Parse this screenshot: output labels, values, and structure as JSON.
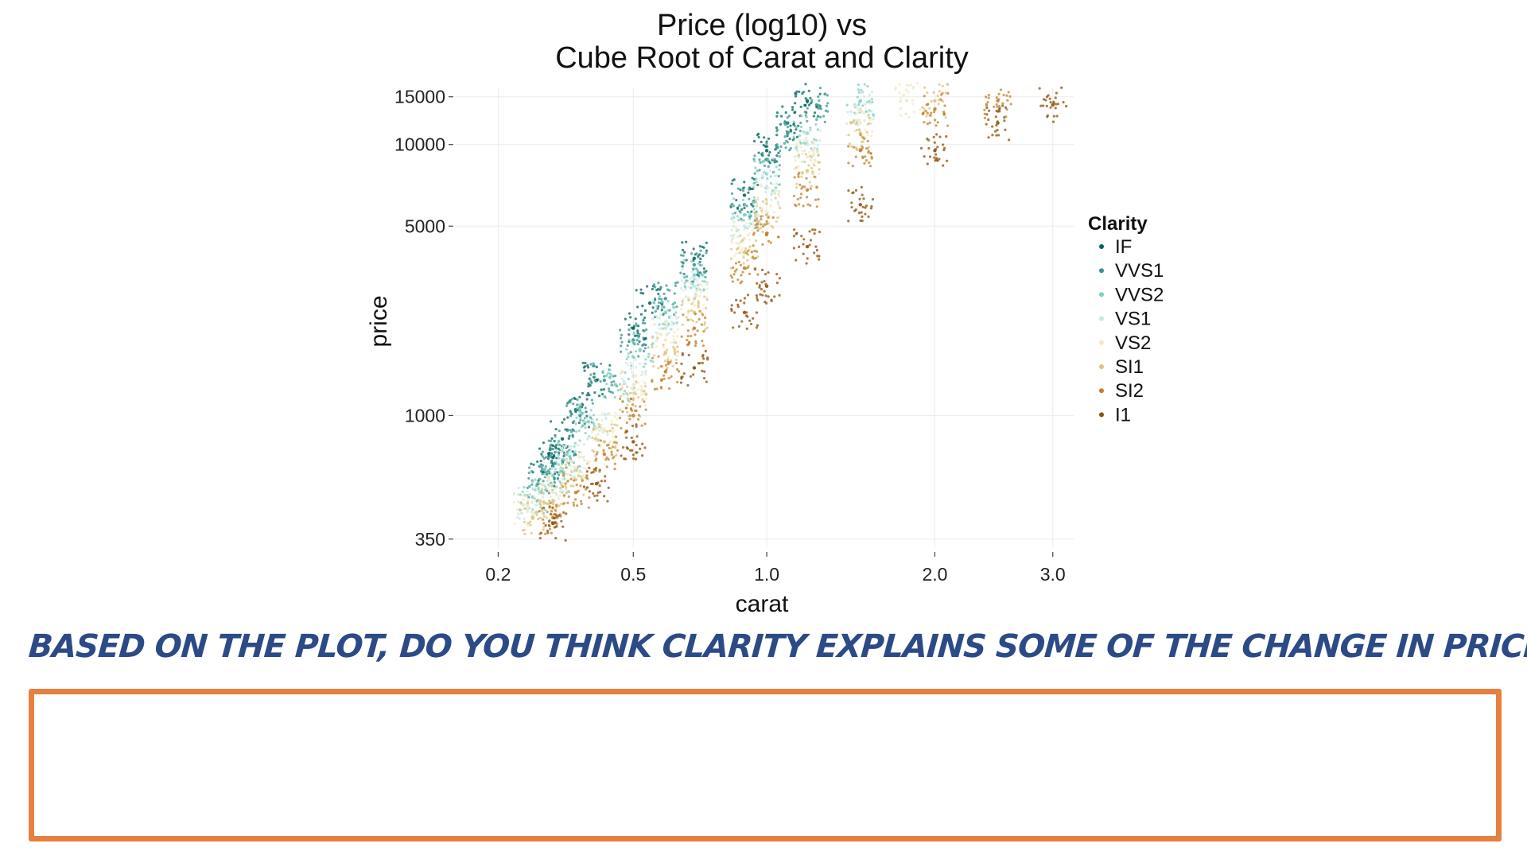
{
  "question": {
    "text": "BASED ON THE PLOT, DO YOU THINK CLARITY EXPLAINS SOME OF THE CHANGE IN PRICE? WHY?",
    "answer": ""
  },
  "colors": {
    "answer_box_border": "#e67f3f",
    "handwriting": "#2c4a86"
  },
  "chart_data": {
    "type": "scatter",
    "title_lines": [
      "Price (log10) vs",
      "Cube Root of Carat and Clarity"
    ],
    "xlabel": "carat",
    "ylabel": "price",
    "x_scale": "cube-root",
    "y_scale": "log10",
    "xlim": [
      0.2,
      3.0
    ],
    "ylim": [
      350,
      15000
    ],
    "x_ticks": [
      0.2,
      0.5,
      1.0,
      2.0,
      3.0
    ],
    "x_tick_labels": [
      "0.2",
      "0.5",
      "1.0",
      "2.0",
      "3.0"
    ],
    "y_ticks": [
      350,
      1000,
      5000,
      10000,
      15000
    ],
    "y_tick_labels": [
      "350",
      "1000",
      "5000",
      "10000",
      "15000"
    ],
    "grid": true,
    "legend": {
      "title": "Clarity",
      "position": "right"
    },
    "series": [
      {
        "name": "IF",
        "color": "#01665e",
        "points": [
          [
            0.28,
            620
          ],
          [
            0.3,
            700
          ],
          [
            0.32,
            820
          ],
          [
            0.35,
            1050
          ],
          [
            0.4,
            1350
          ],
          [
            0.5,
            2100
          ],
          [
            0.55,
            2600
          ],
          [
            0.7,
            3800
          ],
          [
            0.9,
            6500
          ],
          [
            1.0,
            9500
          ],
          [
            1.1,
            12000
          ],
          [
            1.2,
            14500
          ]
        ]
      },
      {
        "name": "VVS1",
        "color": "#35978f",
        "points": [
          [
            0.27,
            560
          ],
          [
            0.3,
            650
          ],
          [
            0.32,
            760
          ],
          [
            0.36,
            1000
          ],
          [
            0.42,
            1350
          ],
          [
            0.5,
            1900
          ],
          [
            0.6,
            2700
          ],
          [
            0.7,
            3600
          ],
          [
            0.9,
            6000
          ],
          [
            1.0,
            8800
          ],
          [
            1.1,
            11000
          ],
          [
            1.25,
            14000
          ]
        ]
      },
      {
        "name": "VVS2",
        "color": "#80cdc1",
        "points": [
          [
            0.26,
            500
          ],
          [
            0.3,
            600
          ],
          [
            0.33,
            720
          ],
          [
            0.38,
            950
          ],
          [
            0.45,
            1300
          ],
          [
            0.52,
            1750
          ],
          [
            0.6,
            2400
          ],
          [
            0.7,
            3300
          ],
          [
            0.9,
            5500
          ],
          [
            1.0,
            7800
          ],
          [
            1.2,
            11000
          ],
          [
            1.5,
            14500
          ]
        ]
      },
      {
        "name": "VS1",
        "color": "#c7eae5",
        "points": [
          [
            0.25,
            470
          ],
          [
            0.3,
            560
          ],
          [
            0.34,
            680
          ],
          [
            0.4,
            900
          ],
          [
            0.5,
            1400
          ],
          [
            0.6,
            2100
          ],
          [
            0.7,
            3000
          ],
          [
            0.9,
            5000
          ],
          [
            1.0,
            7000
          ],
          [
            1.2,
            10000
          ],
          [
            1.5,
            13500
          ]
        ]
      },
      {
        "name": "VS2",
        "color": "#f6e8c3",
        "points": [
          [
            0.25,
            450
          ],
          [
            0.3,
            520
          ],
          [
            0.35,
            640
          ],
          [
            0.42,
            880
          ],
          [
            0.5,
            1250
          ],
          [
            0.6,
            1900
          ],
          [
            0.7,
            2700
          ],
          [
            0.9,
            4500
          ],
          [
            1.0,
            6200
          ],
          [
            1.2,
            9000
          ],
          [
            1.5,
            12000
          ],
          [
            1.8,
            14500
          ]
        ]
      },
      {
        "name": "SI1",
        "color": "#dfc27d",
        "points": [
          [
            0.26,
            420
          ],
          [
            0.3,
            480
          ],
          [
            0.35,
            580
          ],
          [
            0.42,
            800
          ],
          [
            0.5,
            1150
          ],
          [
            0.6,
            1700
          ],
          [
            0.7,
            2400
          ],
          [
            0.9,
            4000
          ],
          [
            1.0,
            5500
          ],
          [
            1.2,
            8000
          ],
          [
            1.5,
            11000
          ],
          [
            2.0,
            14500
          ]
        ]
      },
      {
        "name": "SI2",
        "color": "#bf812d",
        "points": [
          [
            0.3,
            420
          ],
          [
            0.35,
            520
          ],
          [
            0.42,
            720
          ],
          [
            0.5,
            1000
          ],
          [
            0.6,
            1450
          ],
          [
            0.7,
            2100
          ],
          [
            0.9,
            3500
          ],
          [
            1.0,
            4700
          ],
          [
            1.2,
            6800
          ],
          [
            1.5,
            9500
          ],
          [
            2.0,
            13500
          ],
          [
            2.5,
            14500
          ]
        ]
      },
      {
        "name": "I1",
        "color": "#8c510a",
        "points": [
          [
            0.3,
            400
          ],
          [
            0.4,
            560
          ],
          [
            0.5,
            800
          ],
          [
            0.7,
            1500
          ],
          [
            0.9,
            2400
          ],
          [
            1.0,
            3000
          ],
          [
            1.2,
            4200
          ],
          [
            1.5,
            6000
          ],
          [
            2.0,
            9500
          ],
          [
            2.5,
            12000
          ],
          [
            3.0,
            14000
          ]
        ]
      }
    ]
  }
}
